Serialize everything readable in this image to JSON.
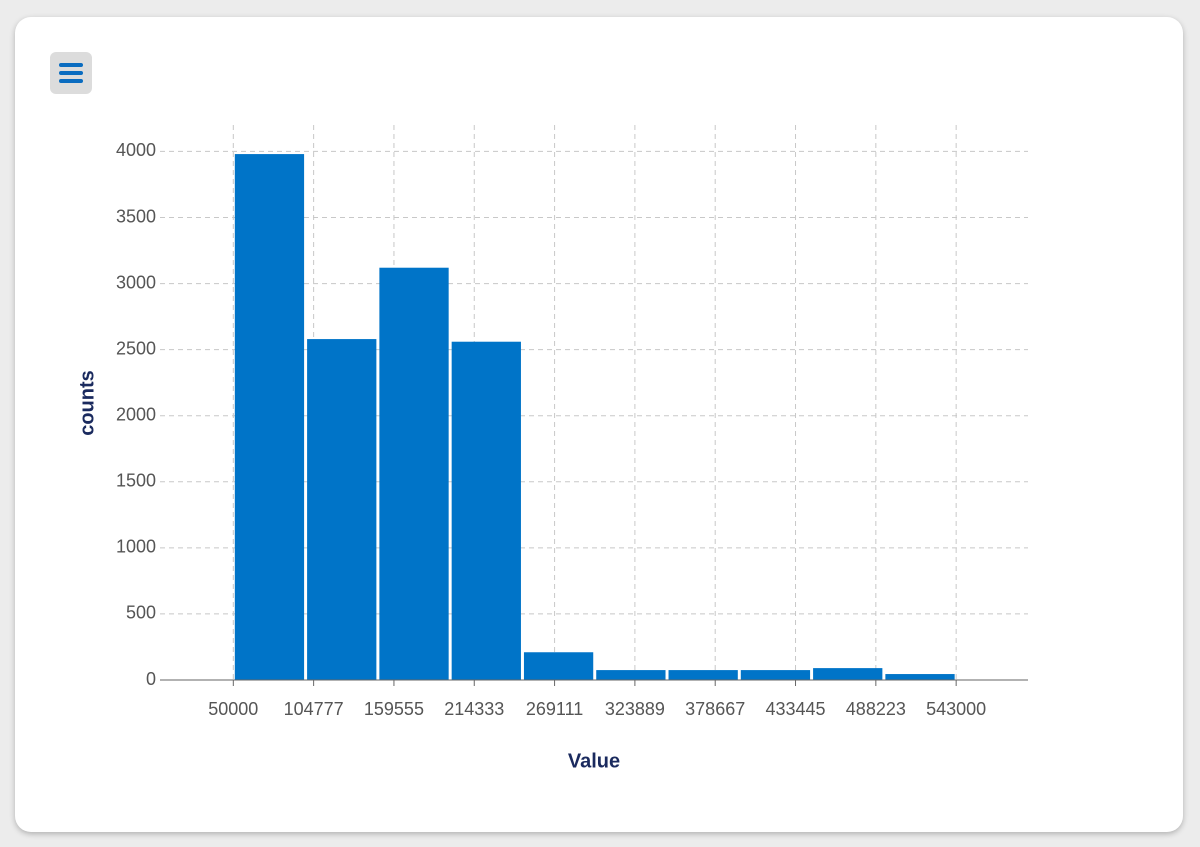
{
  "chart_data": {
    "type": "histogram",
    "x_label": "Value",
    "y_label": "counts",
    "bins": [
      50000,
      99300,
      148600,
      197900,
      247200,
      296500,
      345800,
      395100,
      444400,
      493700,
      543000
    ],
    "counts": [
      3980,
      2580,
      3120,
      2560,
      210,
      75,
      75,
      75,
      90,
      45
    ],
    "color": "#0074c8",
    "xlim": [
      0,
      592000
    ],
    "xticks": [
      50000,
      104777,
      159555,
      214333,
      269111,
      323889,
      378667,
      433445,
      488223,
      543000
    ],
    "ylim": [
      0,
      4200
    ],
    "yticks": [
      0,
      500,
      1000,
      1500,
      2000,
      2500,
      3000,
      3500,
      4000
    ],
    "grid": true
  }
}
